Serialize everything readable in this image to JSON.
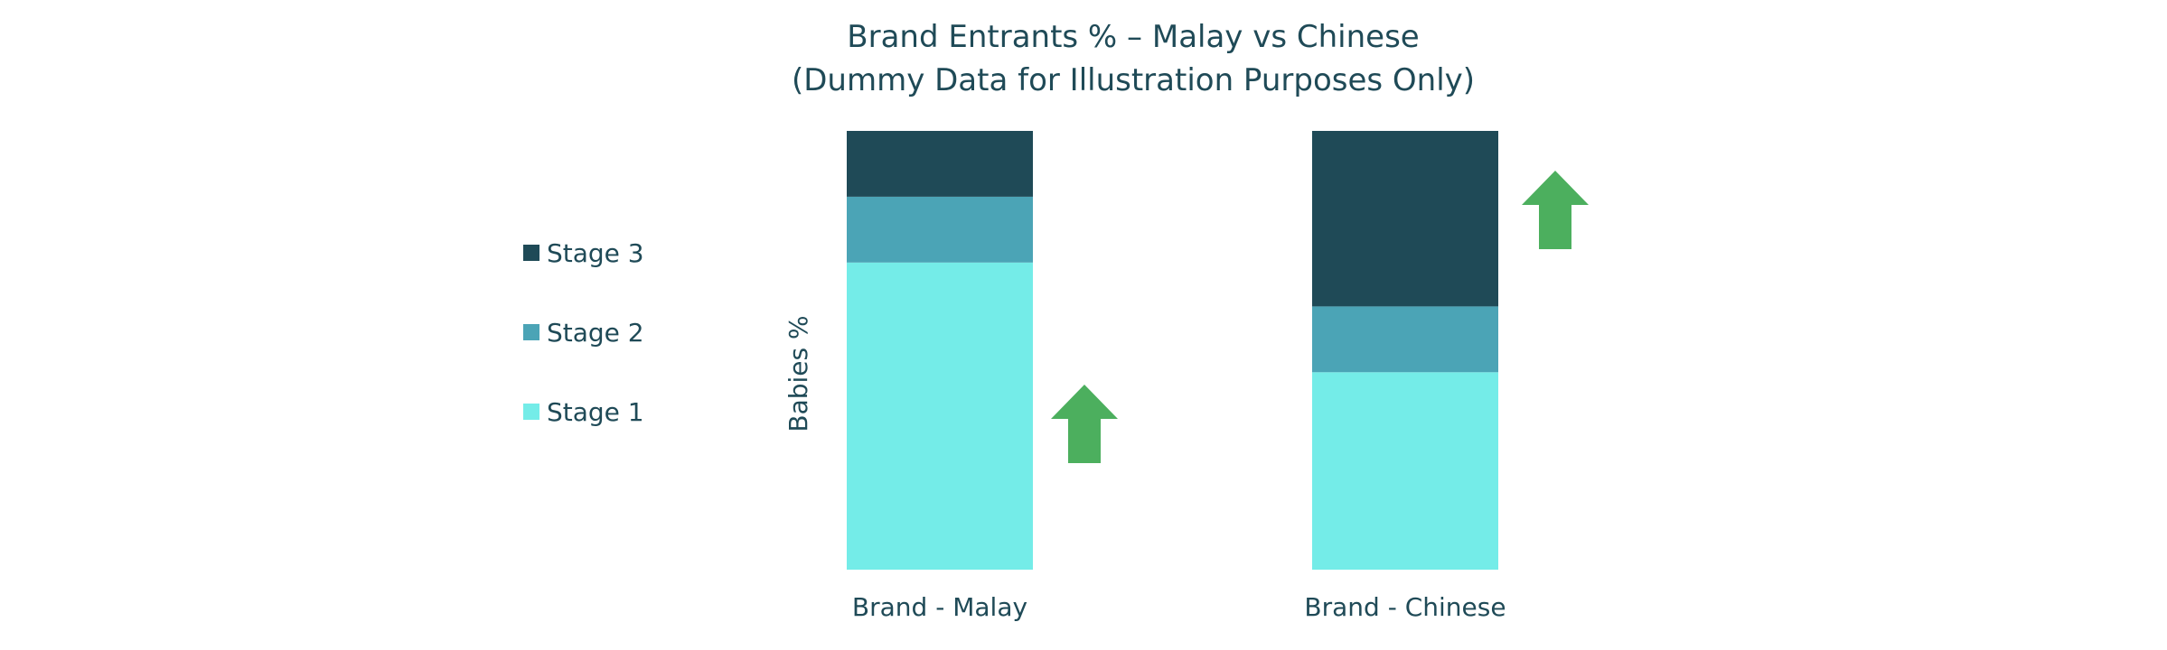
{
  "chart_data": {
    "type": "bar",
    "stacked": true,
    "title": "Brand Entrants % – Malay vs Chinese",
    "subtitle": "(Dummy Data for Illustration Purposes Only)",
    "ylabel": "Babies %",
    "xlabel": "",
    "ylim": [
      0,
      100
    ],
    "grid": false,
    "legend_position": "left",
    "categories": [
      "Brand - Malay",
      "Brand - Chinese"
    ],
    "series": [
      {
        "name": "Stage 1",
        "color": "#74ECE8",
        "values": [
          70,
          45
        ]
      },
      {
        "name": "Stage 2",
        "color": "#4BA4B6",
        "values": [
          15,
          15
        ]
      },
      {
        "name": "Stage 3",
        "color": "#1F4A57",
        "values": [
          15,
          40
        ]
      }
    ],
    "annotations": [
      {
        "type": "up-arrow",
        "category": "Brand - Malay",
        "color": "#4CAF5E"
      },
      {
        "type": "up-arrow",
        "category": "Brand - Chinese",
        "color": "#4CAF5E"
      }
    ]
  }
}
